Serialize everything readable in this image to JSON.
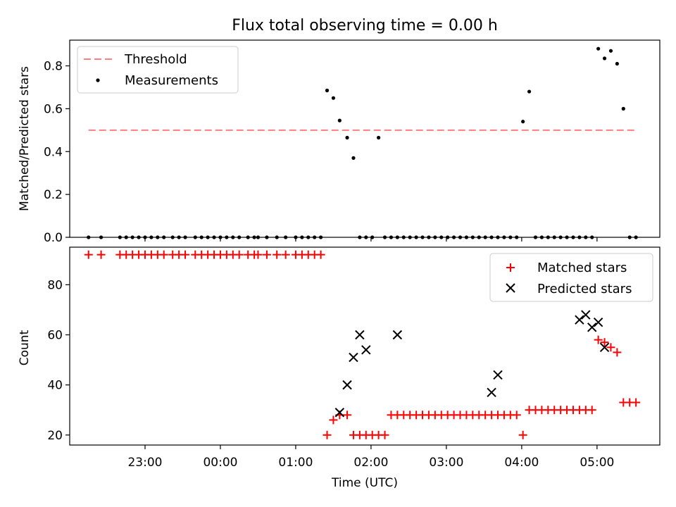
{
  "chart_data": [
    {
      "type": "scatter",
      "title": "Flux total observing time = 0.00 h",
      "ylabel": "Matched/Predicted stars",
      "xlabel": "",
      "xlim": [
        "2024-01-01T22:00",
        "2024-01-02T05:50"
      ],
      "ylim": [
        0,
        0.92
      ],
      "yticks": [
        0.0,
        0.2,
        0.4,
        0.6,
        0.8
      ],
      "ytick_labels": [
        "0.0",
        "0.2",
        "0.4",
        "0.6",
        "0.8"
      ],
      "legend_position": "top-left",
      "threshold": {
        "name": "Threshold",
        "color": "#ff7f7f",
        "style": "dashed",
        "y": 0.5,
        "x_range": [
          "2024-01-01T22:15",
          "2024-01-02T05:30"
        ]
      },
      "series": [
        {
          "name": "Measurements",
          "color": "#000000",
          "marker": "dot",
          "x": [
            "2024-01-01T22:15",
            "2024-01-01T22:25",
            "2024-01-01T22:40",
            "2024-01-01T22:45",
            "2024-01-01T22:50",
            "2024-01-01T22:55",
            "2024-01-01T23:00",
            "2024-01-01T23:05",
            "2024-01-01T23:10",
            "2024-01-01T23:15",
            "2024-01-01T23:22",
            "2024-01-01T23:27",
            "2024-01-01T23:32",
            "2024-01-01T23:40",
            "2024-01-01T23:45",
            "2024-01-01T23:50",
            "2024-01-01T23:55",
            "2024-01-02T00:00",
            "2024-01-02T00:05",
            "2024-01-02T00:10",
            "2024-01-02T00:15",
            "2024-01-02T00:22",
            "2024-01-02T00:27",
            "2024-01-02T00:30",
            "2024-01-02T00:37",
            "2024-01-02T00:45",
            "2024-01-02T00:52",
            "2024-01-02T01:00",
            "2024-01-02T01:05",
            "2024-01-02T01:10",
            "2024-01-02T01:15",
            "2024-01-02T01:20",
            "2024-01-02T01:25",
            "2024-01-02T01:30",
            "2024-01-02T01:35",
            "2024-01-02T01:41",
            "2024-01-02T01:46",
            "2024-01-02T01:51",
            "2024-01-02T01:56",
            "2024-01-02T02:01",
            "2024-01-02T02:06",
            "2024-01-02T02:11",
            "2024-01-02T02:16",
            "2024-01-02T02:21",
            "2024-01-02T02:26",
            "2024-01-02T02:31",
            "2024-01-02T02:36",
            "2024-01-02T02:41",
            "2024-01-02T02:46",
            "2024-01-02T02:51",
            "2024-01-02T02:56",
            "2024-01-02T03:01",
            "2024-01-02T03:06",
            "2024-01-02T03:11",
            "2024-01-02T03:16",
            "2024-01-02T03:21",
            "2024-01-02T03:26",
            "2024-01-02T03:31",
            "2024-01-02T03:36",
            "2024-01-02T03:41",
            "2024-01-02T03:46",
            "2024-01-02T03:51",
            "2024-01-02T03:56",
            "2024-01-02T04:01",
            "2024-01-02T04:06",
            "2024-01-02T04:11",
            "2024-01-02T04:16",
            "2024-01-02T04:21",
            "2024-01-02T04:26",
            "2024-01-02T04:31",
            "2024-01-02T04:36",
            "2024-01-02T04:41",
            "2024-01-02T04:46",
            "2024-01-02T04:51",
            "2024-01-02T04:56",
            "2024-01-02T05:01",
            "2024-01-02T05:06",
            "2024-01-02T05:11",
            "2024-01-02T05:16",
            "2024-01-02T05:21",
            "2024-01-02T05:26",
            "2024-01-02T05:31"
          ],
          "y": [
            0,
            0,
            0,
            0,
            0,
            0,
            0,
            0,
            0,
            0,
            0,
            0,
            0,
            0,
            0,
            0,
            0,
            0,
            0,
            0,
            0,
            0,
            0,
            0,
            0,
            0,
            0,
            0,
            0,
            0,
            0,
            0,
            0.685,
            0.65,
            0.545,
            0.465,
            0.37,
            0,
            0,
            0,
            0.465,
            0,
            0,
            0,
            0,
            0,
            0,
            0,
            0,
            0,
            0,
            0,
            0,
            0,
            0,
            0,
            0,
            0,
            0,
            0,
            0,
            0,
            0,
            0.54,
            0.68,
            0,
            0,
            0,
            0,
            0,
            0,
            0,
            0,
            0,
            0,
            0.88,
            0.835,
            0.87,
            0.81,
            0.6,
            0,
            0
          ]
        }
      ]
    },
    {
      "type": "scatter",
      "title": "",
      "ylabel": "Count",
      "xlabel": "Time (UTC)",
      "xlim": [
        "2024-01-01T22:00",
        "2024-01-02T05:50"
      ],
      "ylim": [
        16,
        95
      ],
      "yticks": [
        20,
        40,
        60,
        80
      ],
      "ytick_labels": [
        "20",
        "40",
        "60",
        "80"
      ],
      "xticks": [
        "2024-01-01T23:00",
        "2024-01-02T00:00",
        "2024-01-02T01:00",
        "2024-01-02T02:00",
        "2024-01-02T03:00",
        "2024-01-02T04:00",
        "2024-01-02T05:00"
      ],
      "xtick_labels": [
        "23:00",
        "00:00",
        "01:00",
        "02:00",
        "03:00",
        "04:00",
        "05:00"
      ],
      "legend_position": "top-right",
      "series": [
        {
          "name": "Matched stars",
          "color": "#ff0000",
          "marker": "plus",
          "x": [
            "2024-01-01T22:15",
            "2024-01-01T22:25",
            "2024-01-01T22:40",
            "2024-01-01T22:45",
            "2024-01-01T22:50",
            "2024-01-01T22:55",
            "2024-01-01T23:00",
            "2024-01-01T23:05",
            "2024-01-01T23:10",
            "2024-01-01T23:15",
            "2024-01-01T23:22",
            "2024-01-01T23:27",
            "2024-01-01T23:32",
            "2024-01-01T23:40",
            "2024-01-01T23:45",
            "2024-01-01T23:50",
            "2024-01-01T23:55",
            "2024-01-02T00:00",
            "2024-01-02T00:05",
            "2024-01-02T00:10",
            "2024-01-02T00:15",
            "2024-01-02T00:22",
            "2024-01-02T00:27",
            "2024-01-02T00:30",
            "2024-01-02T00:37",
            "2024-01-02T00:45",
            "2024-01-02T00:52",
            "2024-01-02T01:00",
            "2024-01-02T01:05",
            "2024-01-02T01:10",
            "2024-01-02T01:15",
            "2024-01-02T01:20",
            "2024-01-02T01:25",
            "2024-01-02T01:30",
            "2024-01-02T01:35",
            "2024-01-02T01:41",
            "2024-01-02T01:46",
            "2024-01-02T01:51",
            "2024-01-02T01:56",
            "2024-01-02T02:01",
            "2024-01-02T02:06",
            "2024-01-02T02:11",
            "2024-01-02T02:16",
            "2024-01-02T02:21",
            "2024-01-02T02:26",
            "2024-01-02T02:31",
            "2024-01-02T02:36",
            "2024-01-02T02:41",
            "2024-01-02T02:46",
            "2024-01-02T02:51",
            "2024-01-02T02:56",
            "2024-01-02T03:01",
            "2024-01-02T03:06",
            "2024-01-02T03:11",
            "2024-01-02T03:16",
            "2024-01-02T03:21",
            "2024-01-02T03:26",
            "2024-01-02T03:31",
            "2024-01-02T03:36",
            "2024-01-02T03:41",
            "2024-01-02T03:46",
            "2024-01-02T03:51",
            "2024-01-02T03:56",
            "2024-01-02T04:01",
            "2024-01-02T04:06",
            "2024-01-02T04:11",
            "2024-01-02T04:16",
            "2024-01-02T04:21",
            "2024-01-02T04:26",
            "2024-01-02T04:31",
            "2024-01-02T04:36",
            "2024-01-02T04:41",
            "2024-01-02T04:46",
            "2024-01-02T04:51",
            "2024-01-02T04:56",
            "2024-01-02T05:01",
            "2024-01-02T05:06",
            "2024-01-02T05:11",
            "2024-01-02T05:16",
            "2024-01-02T05:21",
            "2024-01-02T05:26",
            "2024-01-02T05:31"
          ],
          "y": [
            92,
            92,
            92,
            92,
            92,
            92,
            92,
            92,
            92,
            92,
            92,
            92,
            92,
            92,
            92,
            92,
            92,
            92,
            92,
            92,
            92,
            92,
            92,
            92,
            92,
            92,
            92,
            92,
            92,
            92,
            92,
            92,
            20,
            26,
            28,
            28,
            20,
            20,
            20,
            20,
            20,
            20,
            28,
            28,
            28,
            28,
            28,
            28,
            28,
            28,
            28,
            28,
            28,
            28,
            28,
            28,
            28,
            28,
            28,
            28,
            28,
            28,
            28,
            20,
            30,
            30,
            30,
            30,
            30,
            30,
            30,
            30,
            30,
            30,
            30,
            58,
            57,
            55,
            53,
            33,
            33,
            33
          ]
        },
        {
          "name": "Predicted stars",
          "color": "#000000",
          "marker": "x",
          "x": [
            "2024-01-02T01:35",
            "2024-01-02T01:41",
            "2024-01-02T01:46",
            "2024-01-02T01:51",
            "2024-01-02T01:56",
            "2024-01-02T02:21",
            "2024-01-02T03:36",
            "2024-01-02T03:41",
            "2024-01-02T04:46",
            "2024-01-02T04:51",
            "2024-01-02T04:56",
            "2024-01-02T05:01",
            "2024-01-02T05:06"
          ],
          "y": [
            29,
            40,
            51,
            60,
            54,
            60,
            37,
            44,
            66,
            68,
            63,
            65,
            55
          ]
        }
      ]
    }
  ]
}
